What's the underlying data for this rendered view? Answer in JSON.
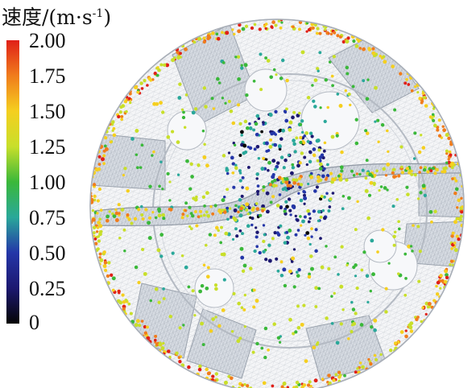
{
  "legend": {
    "title": "速度/(m·s",
    "title_exp": "-1",
    "title_close": ")",
    "ticks": [
      "2.00",
      "1.75",
      "1.50",
      "1.25",
      "1.00",
      "0.75",
      "0.50",
      "0.25",
      "0"
    ],
    "colormap": [
      "#e02018",
      "#f07c1c",
      "#f5cf1f",
      "#c8df2a",
      "#3ab83a",
      "#2aa89a",
      "#2436a8",
      "#1c1870",
      "#050505"
    ]
  }
}
